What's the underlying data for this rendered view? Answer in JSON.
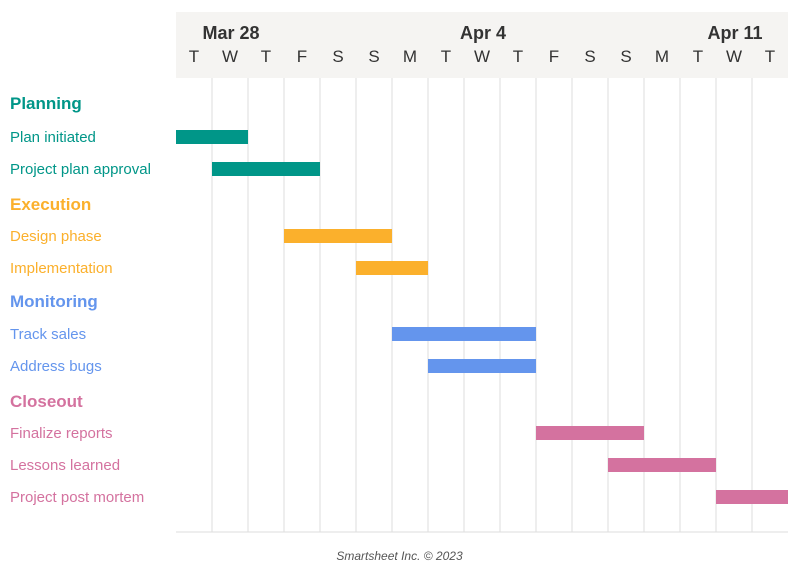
{
  "colors": {
    "header_bg": "#f5f4f2",
    "grid": "#dddddd",
    "planning": "#009688",
    "execution": "#fbb02c",
    "monitoring": "#6495ed",
    "closeout": "#d4729f"
  },
  "footer": "Smartsheet Inc. © 2023",
  "chart_data": {
    "type": "gantt",
    "days": [
      "T",
      "W",
      "T",
      "F",
      "S",
      "S",
      "M",
      "T",
      "W",
      "T",
      "F",
      "S",
      "S",
      "M",
      "T",
      "W",
      "T"
    ],
    "weeks": [
      {
        "label": "Mar 28",
        "day_index": 1
      },
      {
        "label": "Apr 4",
        "day_index": 8
      },
      {
        "label": "Apr 11",
        "day_index": 15
      }
    ],
    "groups": [
      {
        "name": "Planning",
        "color": "#009688",
        "tasks": [
          {
            "name": "Plan initiated",
            "start": 0,
            "end": 2
          },
          {
            "name": "Project plan approval",
            "start": 1,
            "end": 4
          }
        ]
      },
      {
        "name": "Execution",
        "color": "#fbb02c",
        "tasks": [
          {
            "name": "Design phase",
            "start": 3,
            "end": 6
          },
          {
            "name": "Implementation",
            "start": 5,
            "end": 7
          }
        ]
      },
      {
        "name": "Monitoring",
        "color": "#6495ed",
        "tasks": [
          {
            "name": "Track sales",
            "start": 6,
            "end": 10
          },
          {
            "name": "Address bugs",
            "start": 7,
            "end": 10
          }
        ]
      },
      {
        "name": "Closeout",
        "color": "#d4729f",
        "tasks": [
          {
            "name": "Finalize reports",
            "start": 10,
            "end": 13
          },
          {
            "name": "Lessons learned",
            "start": 12,
            "end": 15
          },
          {
            "name": "Project post mortem",
            "start": 15,
            "end": 17
          }
        ]
      }
    ]
  }
}
